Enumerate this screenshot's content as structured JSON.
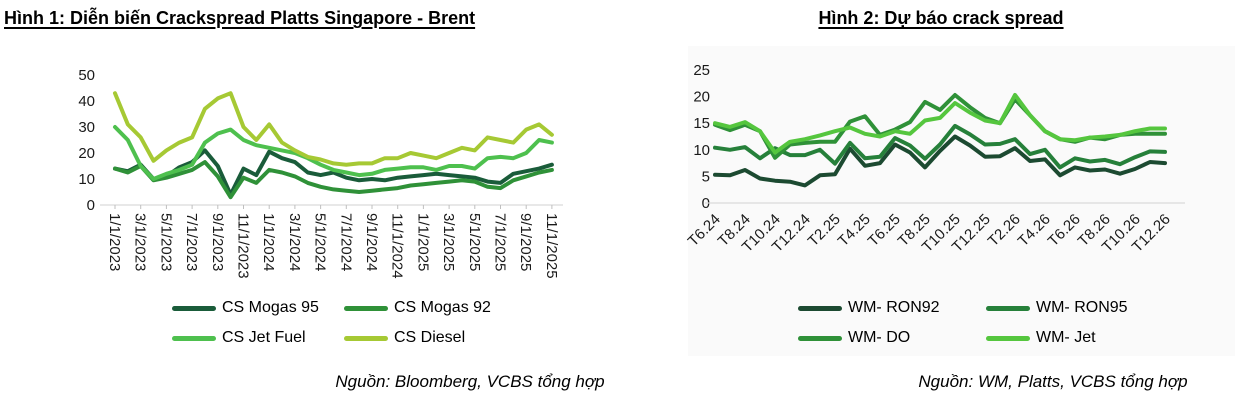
{
  "figure1": {
    "title": "Hình 1: Diễn biến Crackspread Platts Singapore - Brent",
    "source": "Nguồn: Bloomberg, VCBS tổng hợp"
  },
  "figure2": {
    "title": "Hình 2: Dự báo crack spread",
    "source": "Nguồn: WM, Platts, VCBS tổng hợp"
  },
  "chart_data": [
    {
      "type": "line",
      "title": "Hình 1: Diễn biến Crackspread Platts Singapore - Brent",
      "ylim": [
        0,
        50
      ],
      "yticks": [
        0,
        10,
        20,
        30,
        40,
        50
      ],
      "grid": false,
      "legend_position": "bottom",
      "n_points": 35,
      "points_per_tick": 2,
      "x_frequency": "monthly",
      "x_tick_labels": [
        "1/1/2023",
        "3/1/2023",
        "5/1/2023",
        "7/1/2023",
        "9/1/2023",
        "11/1/2023",
        "1/1/2024",
        "3/1/2024",
        "5/1/2024",
        "7/1/2024",
        "9/1/2024",
        "11/1/2024",
        "1/1/2025",
        "3/1/2025",
        "5/1/2025",
        "7/1/2025",
        "9/1/2025",
        "11/1/2025"
      ],
      "series": [
        {
          "name": "CS Mogas 95",
          "color": "#1a5c3a",
          "values": [
            14,
            13,
            15.5,
            10,
            11,
            14.5,
            16.5,
            21,
            15,
            4,
            14,
            11.5,
            20.5,
            18,
            16.5,
            12.5,
            11.5,
            12.5,
            10.5,
            9.5,
            10,
            9.5,
            10.5,
            11,
            11.5,
            12,
            11.5,
            11,
            10.5,
            9,
            8.5,
            12,
            13,
            14,
            15.5
          ]
        },
        {
          "name": "CS Mogas 92",
          "color": "#2f9138",
          "values": [
            14,
            12.5,
            15,
            9.5,
            10.5,
            12,
            13.5,
            16.5,
            11,
            3,
            10.5,
            8.5,
            13.5,
            12.5,
            11,
            8.5,
            7,
            6,
            5.5,
            5,
            5.5,
            6,
            6.5,
            7.5,
            8,
            8.5,
            9,
            9.5,
            9,
            7,
            6.5,
            9.5,
            11,
            12.5,
            13.5
          ]
        },
        {
          "name": "CS Jet Fuel",
          "color": "#4ec04e",
          "values": [
            30,
            25,
            15,
            10,
            12,
            13.5,
            15.5,
            24,
            27.5,
            29,
            25,
            23,
            22,
            21,
            20,
            18,
            15.5,
            13.5,
            12.5,
            11.5,
            12,
            13.5,
            14,
            14.5,
            14.5,
            13.5,
            15,
            15,
            14,
            18,
            18.5,
            18,
            20,
            25,
            24
          ]
        },
        {
          "name": "CS Diesel",
          "color": "#a6c934",
          "values": [
            43,
            31,
            26,
            17,
            21,
            24,
            26,
            37,
            41,
            43,
            30,
            25,
            31,
            24,
            21,
            18.5,
            17.5,
            16,
            15.5,
            16,
            16,
            18,
            18,
            20,
            19,
            18,
            20,
            22,
            21,
            26,
            25,
            24,
            29,
            31,
            27
          ]
        }
      ],
      "source": "Nguồn: Bloomberg, VCBS tổng hợp"
    },
    {
      "type": "line",
      "title": "Hình 2: Dự báo crack spread",
      "ylim": [
        0,
        25
      ],
      "yticks": [
        0,
        5,
        10,
        15,
        20,
        25
      ],
      "grid": false,
      "legend_position": "bottom",
      "n_points": 31,
      "points_per_tick": 2,
      "x_frequency": "monthly",
      "x_tick_labels": [
        "T6.24",
        "T8.24",
        "T10.24",
        "T12.24",
        "T2.25",
        "T4.25",
        "T6.25",
        "T8.25",
        "T10.25",
        "T12.25",
        "T2.26",
        "T4.26",
        "T6.26",
        "T8.26",
        "T10.26",
        "T12.26"
      ],
      "series": [
        {
          "name": "WM- RON92",
          "color": "#1c4a31",
          "values": [
            5.3,
            5.2,
            6.2,
            4.6,
            4.2,
            4,
            3.3,
            5.2,
            5.4,
            10.2,
            7,
            7.5,
            11,
            9.5,
            6.7,
            9.8,
            12.5,
            10.8,
            8.7,
            8.8,
            10.3,
            7.9,
            8.2,
            5.2,
            6.7,
            6.1,
            6.3,
            5.5,
            6.4,
            7.7,
            7.5
          ]
        },
        {
          "name": "WM- RON95",
          "color": "#26803a",
          "values": [
            10.4,
            10,
            10.5,
            8.4,
            10.3,
            9,
            9,
            10,
            7.4,
            11.3,
            8.4,
            8.7,
            12.2,
            10.8,
            8.3,
            11,
            14.5,
            12.9,
            11,
            11.1,
            12,
            9.2,
            10,
            6.7,
            8.4,
            7.8,
            8.1,
            7.3,
            8.6,
            9.7,
            9.6
          ]
        },
        {
          "name": "WM- DO",
          "color": "#2f9138",
          "values": [
            14.7,
            13.7,
            14.7,
            13.5,
            8.5,
            11,
            11.3,
            11.5,
            11.5,
            15.3,
            16.3,
            12.8,
            13.8,
            15.2,
            19,
            17.5,
            20.3,
            18,
            16,
            15,
            19.5,
            16.5,
            13.5,
            12,
            11.5,
            12.3,
            12,
            12.8,
            13,
            13,
            13
          ]
        },
        {
          "name": "WM- Jet",
          "color": "#55c63e",
          "values": [
            15,
            14.3,
            15.2,
            13.5,
            9.5,
            11.5,
            12,
            12.7,
            13.5,
            14.2,
            13,
            12.5,
            13.5,
            13,
            15.5,
            16,
            18.8,
            17,
            15.5,
            15,
            20.3,
            16.5,
            13.5,
            12,
            11.8,
            12.3,
            12.5,
            12.8,
            13.5,
            14,
            14
          ]
        }
      ],
      "source": "Nguồn: WM, Platts, VCBS tổng hợp"
    }
  ],
  "style": {
    "axis_line_color": "#d9d9d9",
    "tick_color": "#bfbfbf",
    "label_color": "#1a1a1a"
  }
}
